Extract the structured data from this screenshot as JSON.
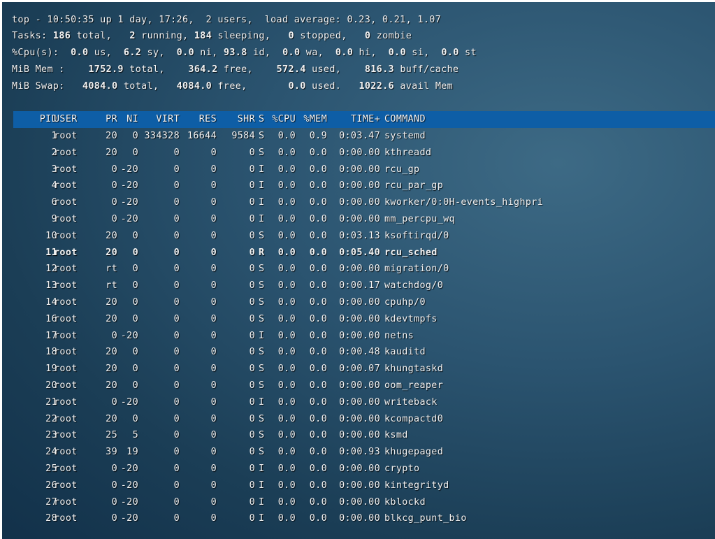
{
  "summary": {
    "uptime": {
      "prefix": "top - 10:50:35 up 1 day, 17:26,  2 users,  load average: 0.23, 0.21, 1.07"
    },
    "tasks": {
      "label": "Tasks:",
      "total": "186",
      "total_label": "total,",
      "running": "2",
      "running_label": "running,",
      "sleeping": "184",
      "sleeping_label": "sleeping,",
      "stopped": "0",
      "stopped_label": "stopped,",
      "zombie": "0",
      "zombie_label": "zombie"
    },
    "cpu": {
      "label": "%Cpu(s):",
      "us": "0.0",
      "us_label": "us,",
      "sy": "6.2",
      "sy_label": "sy,",
      "ni": "0.0",
      "ni_label": "ni,",
      "id": "93.8",
      "id_label": "id,",
      "wa": "0.0",
      "wa_label": "wa,",
      "hi": "0.0",
      "hi_label": "hi,",
      "si": "0.0",
      "si_label": "si,",
      "st": "0.0",
      "st_label": "st"
    },
    "mem": {
      "label": "MiB Mem :",
      "total": "1752.9",
      "total_label": "total,",
      "free": "364.2",
      "free_label": "free,",
      "used": "572.4",
      "used_label": "used,",
      "cache": "816.3",
      "cache_label": "buff/cache"
    },
    "swap": {
      "label": "MiB Swap:",
      "total": "4084.0",
      "total_label": "total,",
      "free": "4084.0",
      "free_label": "free,",
      "used": "0.0",
      "used_label": "used.",
      "avail": "1022.6",
      "avail_label": "avail Mem"
    }
  },
  "columns": [
    "PID",
    "USER",
    "PR",
    "NI",
    "VIRT",
    "RES",
    "SHR",
    "S",
    "%CPU",
    "%MEM",
    "TIME+",
    "COMMAND"
  ],
  "processes": [
    [
      "1",
      "root",
      "20",
      "0",
      "334328",
      "16644",
      "9584",
      "S",
      "0.0",
      "0.9",
      "0:03.47",
      "systemd"
    ],
    [
      "2",
      "root",
      "20",
      "0",
      "0",
      "0",
      "0",
      "S",
      "0.0",
      "0.0",
      "0:00.00",
      "kthreadd"
    ],
    [
      "3",
      "root",
      "0",
      "-20",
      "0",
      "0",
      "0",
      "I",
      "0.0",
      "0.0",
      "0:00.00",
      "rcu_gp"
    ],
    [
      "4",
      "root",
      "0",
      "-20",
      "0",
      "0",
      "0",
      "I",
      "0.0",
      "0.0",
      "0:00.00",
      "rcu_par_gp"
    ],
    [
      "6",
      "root",
      "0",
      "-20",
      "0",
      "0",
      "0",
      "I",
      "0.0",
      "0.0",
      "0:00.00",
      "kworker/0:0H-events_highpri"
    ],
    [
      "9",
      "root",
      "0",
      "-20",
      "0",
      "0",
      "0",
      "I",
      "0.0",
      "0.0",
      "0:00.00",
      "mm_percpu_wq"
    ],
    [
      "10",
      "root",
      "20",
      "0",
      "0",
      "0",
      "0",
      "S",
      "0.0",
      "0.0",
      "0:03.13",
      "ksoftirqd/0"
    ],
    [
      "11",
      "root",
      "20",
      "0",
      "0",
      "0",
      "0",
      "R",
      "0.0",
      "0.0",
      "0:05.40",
      "rcu_sched"
    ],
    [
      "12",
      "root",
      "rt",
      "0",
      "0",
      "0",
      "0",
      "S",
      "0.0",
      "0.0",
      "0:00.00",
      "migration/0"
    ],
    [
      "13",
      "root",
      "rt",
      "0",
      "0",
      "0",
      "0",
      "S",
      "0.0",
      "0.0",
      "0:00.17",
      "watchdog/0"
    ],
    [
      "14",
      "root",
      "20",
      "0",
      "0",
      "0",
      "0",
      "S",
      "0.0",
      "0.0",
      "0:00.00",
      "cpuhp/0"
    ],
    [
      "16",
      "root",
      "20",
      "0",
      "0",
      "0",
      "0",
      "S",
      "0.0",
      "0.0",
      "0:00.00",
      "kdevtmpfs"
    ],
    [
      "17",
      "root",
      "0",
      "-20",
      "0",
      "0",
      "0",
      "I",
      "0.0",
      "0.0",
      "0:00.00",
      "netns"
    ],
    [
      "18",
      "root",
      "20",
      "0",
      "0",
      "0",
      "0",
      "S",
      "0.0",
      "0.0",
      "0:00.48",
      "kauditd"
    ],
    [
      "19",
      "root",
      "20",
      "0",
      "0",
      "0",
      "0",
      "S",
      "0.0",
      "0.0",
      "0:00.07",
      "khungtaskd"
    ],
    [
      "20",
      "root",
      "20",
      "0",
      "0",
      "0",
      "0",
      "S",
      "0.0",
      "0.0",
      "0:00.00",
      "oom_reaper"
    ],
    [
      "21",
      "root",
      "0",
      "-20",
      "0",
      "0",
      "0",
      "I",
      "0.0",
      "0.0",
      "0:00.00",
      "writeback"
    ],
    [
      "22",
      "root",
      "20",
      "0",
      "0",
      "0",
      "0",
      "S",
      "0.0",
      "0.0",
      "0:00.00",
      "kcompactd0"
    ],
    [
      "23",
      "root",
      "25",
      "5",
      "0",
      "0",
      "0",
      "S",
      "0.0",
      "0.0",
      "0:00.00",
      "ksmd"
    ],
    [
      "24",
      "root",
      "39",
      "19",
      "0",
      "0",
      "0",
      "S",
      "0.0",
      "0.0",
      "0:00.93",
      "khugepaged"
    ],
    [
      "25",
      "root",
      "0",
      "-20",
      "0",
      "0",
      "0",
      "I",
      "0.0",
      "0.0",
      "0:00.00",
      "crypto"
    ],
    [
      "26",
      "root",
      "0",
      "-20",
      "0",
      "0",
      "0",
      "I",
      "0.0",
      "0.0",
      "0:00.00",
      "kintegrityd"
    ],
    [
      "27",
      "root",
      "0",
      "-20",
      "0",
      "0",
      "0",
      "I",
      "0.0",
      "0.0",
      "0:00.00",
      "kblockd"
    ],
    [
      "28",
      "root",
      "0",
      "-20",
      "0",
      "0",
      "0",
      "I",
      "0.0",
      "0.0",
      "0:00.00",
      "blkcg_punt_bio"
    ]
  ],
  "highlighted_pid": "11",
  "colors": {
    "header_bar": "#0e5ea6",
    "background": "#2b5470",
    "text": "#f2f2f2"
  }
}
